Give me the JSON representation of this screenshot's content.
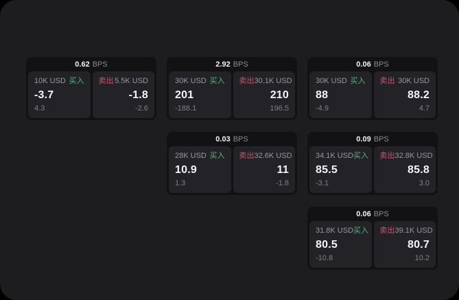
{
  "labels": {
    "buy": "买入",
    "sell": "卖出",
    "bps_unit": "BPS"
  },
  "colors": {
    "page_bg": "#000000",
    "panel_bg": "#1d1d1f",
    "card_bg": "#121214",
    "pane_bg": "#232327",
    "buy_text": "#54b381",
    "sell_text": "#c9536e",
    "value_text": "#f5f5f7",
    "muted_text": "#97979d",
    "sub_text": "#7f7f85"
  },
  "cards": [
    {
      "row": 1,
      "col": 1,
      "bps": "0.62",
      "buy": {
        "amount": "10K USD",
        "value": "-3.7",
        "sub": "4.3"
      },
      "sell": {
        "amount": "5.5K USD",
        "value": "-1.8",
        "sub": "-2.6"
      }
    },
    {
      "row": 1,
      "col": 2,
      "bps": "2.92",
      "buy": {
        "amount": "30K USD",
        "value": "201",
        "sub": "-188.1"
      },
      "sell": {
        "amount": "30.1K USD",
        "value": "210",
        "sub": "196.5"
      }
    },
    {
      "row": 1,
      "col": 3,
      "bps": "0.06",
      "buy": {
        "amount": "30K USD",
        "value": "88",
        "sub": "-4.9"
      },
      "sell": {
        "amount": "30K USD",
        "value": "88.2",
        "sub": "4.7"
      }
    },
    {
      "row": 2,
      "col": 2,
      "bps": "0.03",
      "buy": {
        "amount": "28K USD",
        "value": "10.9",
        "sub": "1.3"
      },
      "sell": {
        "amount": "32.6K USD",
        "value": "11",
        "sub": "-1.8"
      }
    },
    {
      "row": 2,
      "col": 3,
      "bps": "0.09",
      "buy": {
        "amount": "34.1K USD",
        "value": "85.5",
        "sub": "-3.1"
      },
      "sell": {
        "amount": "32.8K USD",
        "value": "85.8",
        "sub": "3.0"
      }
    },
    {
      "row": 3,
      "col": 3,
      "bps": "0.06",
      "buy": {
        "amount": "31.8K USD",
        "value": "80.5",
        "sub": "-10.8"
      },
      "sell": {
        "amount": "39.1K USD",
        "value": "80.7",
        "sub": "10.2"
      }
    }
  ]
}
